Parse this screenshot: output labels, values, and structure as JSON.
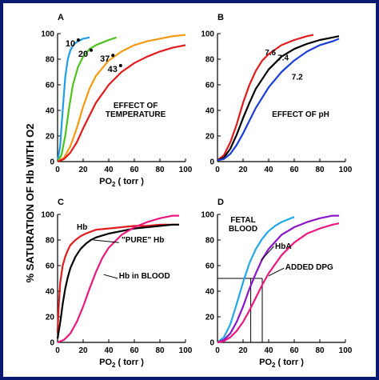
{
  "ylabel": "% SATURATION OF Hb WITH O2",
  "chart_data": [
    {
      "type": "line",
      "panel": "A",
      "annotation": "EFFECT OF TEMPERATURE",
      "xlabel": "PO2 ( torr )",
      "xlim": [
        0,
        100
      ],
      "ylim": [
        0,
        100
      ],
      "xticks": [
        0,
        20,
        40,
        60,
        80,
        100
      ],
      "yticks": [
        0,
        20,
        40,
        60,
        80,
        100
      ],
      "series": [
        {
          "name": "10°",
          "color": "#1e9ee8",
          "x": [
            0,
            2,
            4,
            6,
            8,
            10,
            13,
            16,
            20,
            25
          ],
          "y": [
            0,
            12,
            40,
            66,
            80,
            87,
            92,
            94,
            96,
            97
          ],
          "label_x": 10,
          "label_y": 90
        },
        {
          "name": "20°",
          "color": "#4cc21c",
          "x": [
            0,
            3,
            6,
            9,
            12,
            16,
            20,
            25,
            30,
            35,
            40,
            46
          ],
          "y": [
            0,
            5,
            20,
            42,
            60,
            74,
            82,
            88,
            91,
            93,
            95,
            97
          ],
          "label_x": 20,
          "label_y": 82
        },
        {
          "name": "37°",
          "color": "#f59a10",
          "x": [
            0,
            5,
            10,
            15,
            20,
            25,
            30,
            40,
            50,
            60,
            70,
            80,
            90,
            100
          ],
          "y": [
            0,
            3,
            12,
            26,
            43,
            57,
            67,
            79,
            86,
            91,
            94,
            96,
            98,
            99
          ],
          "label_x": 37,
          "label_y": 78
        },
        {
          "name": "43°",
          "color": "#e01b1b",
          "x": [
            0,
            5,
            10,
            15,
            20,
            25,
            30,
            40,
            50,
            60,
            70,
            80,
            90,
            100
          ],
          "y": [
            0,
            2,
            7,
            15,
            26,
            36,
            46,
            60,
            70,
            77,
            82,
            86,
            89,
            91
          ],
          "label_x": 43,
          "label_y": 70
        }
      ]
    },
    {
      "type": "line",
      "panel": "B",
      "annotation": "EFFECT OF pH",
      "xlabel": "",
      "xlim": [
        0,
        100
      ],
      "ylim": [
        0,
        100
      ],
      "xticks": [
        0,
        20,
        40,
        60,
        80,
        100
      ],
      "yticks": [
        0,
        20,
        40,
        60,
        80,
        100
      ],
      "series": [
        {
          "name": "7.6",
          "color": "#e01b1b",
          "x": [
            0,
            5,
            10,
            15,
            20,
            25,
            30,
            35,
            40,
            50,
            60,
            70,
            75
          ],
          "y": [
            1,
            5,
            15,
            29,
            46,
            60,
            71,
            79,
            84,
            91,
            95,
            98,
            99
          ],
          "label_x": 37,
          "label_y": 83
        },
        {
          "name": "7.4",
          "color": "#000000",
          "x": [
            0,
            5,
            10,
            15,
            20,
            25,
            30,
            40,
            50,
            60,
            70,
            80,
            90,
            95
          ],
          "y": [
            1,
            3,
            10,
            21,
            34,
            46,
            57,
            72,
            82,
            88,
            92,
            95,
            97,
            98
          ],
          "label_x": 47,
          "label_y": 79
        },
        {
          "name": "7.2",
          "color": "#1b3ed8",
          "x": [
            0,
            5,
            10,
            15,
            20,
            25,
            30,
            40,
            50,
            60,
            70,
            80,
            90,
            95
          ],
          "y": [
            1,
            2,
            6,
            13,
            22,
            32,
            42,
            58,
            70,
            79,
            86,
            91,
            94,
            96
          ],
          "label_x": 58,
          "label_y": 64
        }
      ]
    },
    {
      "type": "line",
      "panel": "C",
      "annotation": "",
      "xlabel": "PO2 ( torr )",
      "xlim": [
        0,
        100
      ],
      "ylim": [
        0,
        100
      ],
      "xticks": [
        0,
        20,
        40,
        60,
        80,
        100
      ],
      "yticks": [
        0,
        20,
        40,
        60,
        80,
        100
      ],
      "series": [
        {
          "name": "Hb",
          "color": "#e01b1b",
          "x": [
            0,
            1,
            2,
            4,
            6,
            8,
            10,
            14,
            18,
            22,
            30,
            40,
            50,
            60,
            70,
            80,
            90,
            95
          ],
          "y": [
            8,
            30,
            46,
            60,
            67,
            72,
            76,
            80,
            83,
            85,
            88,
            89,
            90,
            91,
            91,
            92,
            92,
            92
          ],
          "label_x": 15,
          "label_y": 88
        },
        {
          "name": "\"PURE\" Hb",
          "color": "#000000",
          "x": [
            0,
            2,
            4,
            6,
            8,
            10,
            14,
            18,
            22,
            26,
            30,
            40,
            50,
            60,
            70,
            80,
            90,
            95
          ],
          "y": [
            3,
            15,
            30,
            42,
            51,
            58,
            67,
            73,
            77,
            80,
            82,
            85,
            87,
            89,
            90,
            91,
            92,
            92
          ],
          "label_x": 50,
          "label_y": 78
        },
        {
          "name": "Hb in BLOOD",
          "color": "#e8187e",
          "x": [
            0,
            5,
            10,
            15,
            20,
            25,
            30,
            35,
            40,
            50,
            60,
            70,
            80,
            90,
            95
          ],
          "y": [
            0,
            2,
            7,
            16,
            28,
            42,
            55,
            66,
            74,
            84,
            90,
            94,
            97,
            99,
            99
          ],
          "label_x": 48,
          "label_y": 50
        }
      ]
    },
    {
      "type": "line",
      "panel": "D",
      "annotation": "",
      "xlabel": "PO2 ( torr )",
      "xlim": [
        0,
        100
      ],
      "ylim": [
        0,
        100
      ],
      "xticks": [
        0,
        20,
        40,
        60,
        80,
        100
      ],
      "yticks": [
        0,
        20,
        40,
        60,
        80,
        100
      ],
      "series": [
        {
          "name": "FETAL BLOOD",
          "color": "#22a6e8",
          "x": [
            0,
            5,
            10,
            15,
            20,
            25,
            30,
            35,
            40,
            45,
            50,
            55,
            60
          ],
          "y": [
            0,
            4,
            14,
            30,
            47,
            62,
            73,
            81,
            87,
            91,
            94,
            96,
            98
          ],
          "label_x": 20,
          "label_y": 90
        },
        {
          "name": "HbA",
          "color": "#8b16c8",
          "x": [
            0,
            5,
            10,
            15,
            20,
            25,
            30,
            35,
            40,
            50,
            60,
            70,
            80,
            90,
            95
          ],
          "y": [
            0,
            2,
            7,
            16,
            28,
            42,
            54,
            65,
            73,
            84,
            90,
            94,
            97,
            99,
            99
          ],
          "label_x": 45,
          "label_y": 73
        },
        {
          "name": "ADDED DPG",
          "color": "#e8187e",
          "x": [
            0,
            5,
            10,
            15,
            20,
            25,
            30,
            35,
            40,
            50,
            60,
            70,
            80,
            90,
            95
          ],
          "y": [
            0,
            1,
            4,
            9,
            16,
            25,
            35,
            45,
            54,
            68,
            78,
            85,
            89,
            92,
            93
          ],
          "label_x": 53,
          "label_y": 57
        }
      ],
      "reference_lines": {
        "y": 50,
        "x": [
          26,
          35
        ]
      }
    }
  ]
}
